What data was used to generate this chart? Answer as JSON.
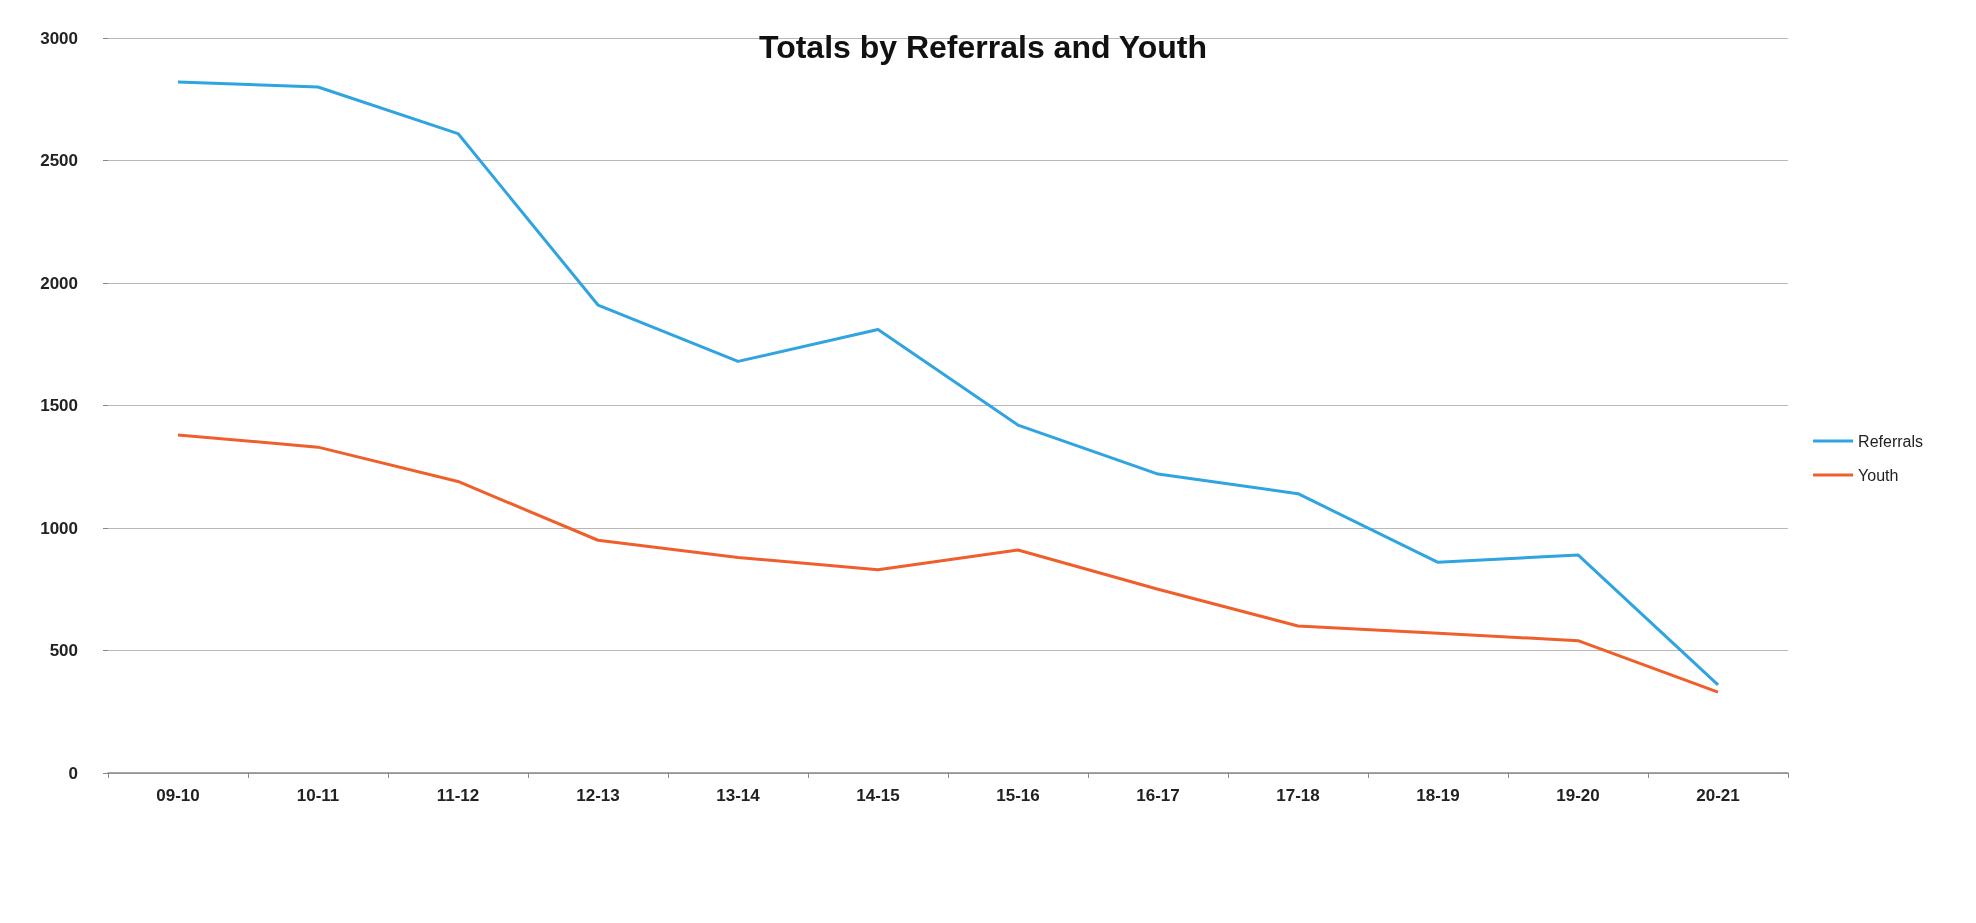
{
  "chart_data": {
    "type": "line",
    "title": "Totals by Referrals and Youth",
    "categories": [
      "09-10",
      "10-11",
      "11-12",
      "12-13",
      "13-14",
      "14-15",
      "15-16",
      "16-17",
      "17-18",
      "18-19",
      "19-20",
      "20-21"
    ],
    "series": [
      {
        "name": "Referrals",
        "color": "#2fa4e0",
        "values": [
          2820,
          2800,
          2610,
          1910,
          1680,
          1810,
          1420,
          1220,
          1140,
          860,
          890,
          360
        ]
      },
      {
        "name": "Youth",
        "color": "#ef5f2b",
        "values": [
          1380,
          1330,
          1190,
          950,
          880,
          830,
          910,
          750,
          600,
          570,
          540,
          330
        ]
      }
    ],
    "ylim": [
      0,
      3000
    ],
    "yticks": [
      0,
      500,
      1000,
      1500,
      2000,
      2500,
      3000
    ],
    "grid": "y",
    "legend": "right",
    "marker": "none"
  }
}
